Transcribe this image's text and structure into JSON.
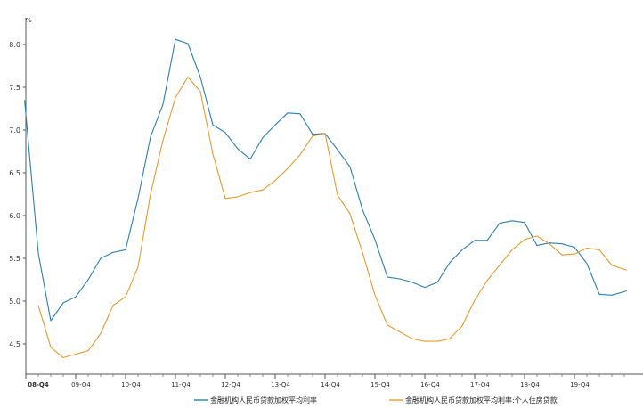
{
  "chart_data": {
    "type": "line",
    "unit": "%",
    "ylim": [
      4.15,
      8.3
    ],
    "yticks": [
      4.5,
      5.0,
      5.5,
      6.0,
      6.5,
      7.0,
      7.5,
      8.0
    ],
    "ytick_labels": [
      "4.5",
      "5.0",
      "5.5",
      "6.0",
      "6.5",
      "7.0",
      "7.5",
      "8.0"
    ],
    "xlim": [
      0,
      48.2
    ],
    "x_tick_labels": [
      {
        "pos": 0,
        "label": "08-Q4"
      },
      {
        "pos": 4,
        "label": "09-Q4"
      },
      {
        "pos": 8,
        "label": "10-Q4"
      },
      {
        "pos": 12,
        "label": "11-Q4"
      },
      {
        "pos": 16,
        "label": "12-Q4"
      },
      {
        "pos": 20,
        "label": "13-Q4"
      },
      {
        "pos": 24,
        "label": "14-Q4"
      },
      {
        "pos": 28,
        "label": "15-Q4"
      },
      {
        "pos": 32,
        "label": "16-Q4"
      },
      {
        "pos": 36,
        "label": "17-Q4"
      },
      {
        "pos": 40,
        "label": "18-Q4"
      },
      {
        "pos": 44,
        "label": "19-Q4"
      }
    ],
    "legend_position": "bottom",
    "grid": false,
    "series": [
      {
        "name": "金融机构人民币贷款加权平均利率",
        "color": "#2a7fb5",
        "x": [
          -0.1,
          1,
          2,
          3,
          4,
          5,
          6,
          7,
          8,
          9,
          10,
          11,
          12,
          13,
          14,
          15,
          16,
          17,
          18,
          19,
          20,
          21,
          22,
          23,
          24,
          25,
          26,
          27,
          28,
          29,
          30,
          31,
          32,
          33,
          34,
          35,
          36,
          37,
          38,
          39,
          40,
          41,
          42,
          43,
          44,
          45,
          46,
          47,
          48.2
        ],
        "values": [
          7.35,
          5.56,
          4.77,
          4.98,
          5.05,
          5.25,
          5.5,
          5.57,
          5.6,
          6.2,
          6.92,
          7.3,
          8.06,
          8.01,
          7.62,
          7.06,
          6.97,
          6.78,
          6.66,
          6.91,
          7.06,
          7.2,
          7.19,
          6.95,
          6.96,
          6.77,
          6.57,
          6.07,
          5.72,
          5.28,
          5.26,
          5.22,
          5.16,
          5.22,
          5.45,
          5.6,
          5.71,
          5.71,
          5.91,
          5.94,
          5.92,
          5.65,
          5.68,
          5.67,
          5.63,
          5.44,
          5.08,
          5.07,
          5.12
        ]
      },
      {
        "name": "金融机构人民币贷款加权平均利率:个人住房贷款",
        "color": "#e99a2c",
        "x": [
          1,
          2,
          3,
          4,
          5,
          6,
          7,
          8,
          9,
          10,
          11,
          12,
          13,
          14,
          15,
          16,
          17,
          18,
          19,
          20,
          21,
          22,
          23,
          24,
          25,
          26,
          27,
          28,
          29,
          30,
          31,
          32,
          33,
          34,
          35,
          36,
          37,
          38,
          39,
          40,
          41,
          42,
          43,
          44,
          45,
          46,
          47,
          48.2
        ],
        "values": [
          4.95,
          4.46,
          4.34,
          4.38,
          4.42,
          4.62,
          4.95,
          5.05,
          5.4,
          6.25,
          6.88,
          7.38,
          7.62,
          7.45,
          6.72,
          6.2,
          6.22,
          6.27,
          6.3,
          6.41,
          6.55,
          6.71,
          6.93,
          6.96,
          6.24,
          6.02,
          5.57,
          5.07,
          4.72,
          4.64,
          4.56,
          4.53,
          4.53,
          4.56,
          4.71,
          5.01,
          5.24,
          5.42,
          5.6,
          5.72,
          5.76,
          5.67,
          5.54,
          5.55,
          5.62,
          5.6,
          5.42,
          5.36
        ]
      }
    ]
  }
}
